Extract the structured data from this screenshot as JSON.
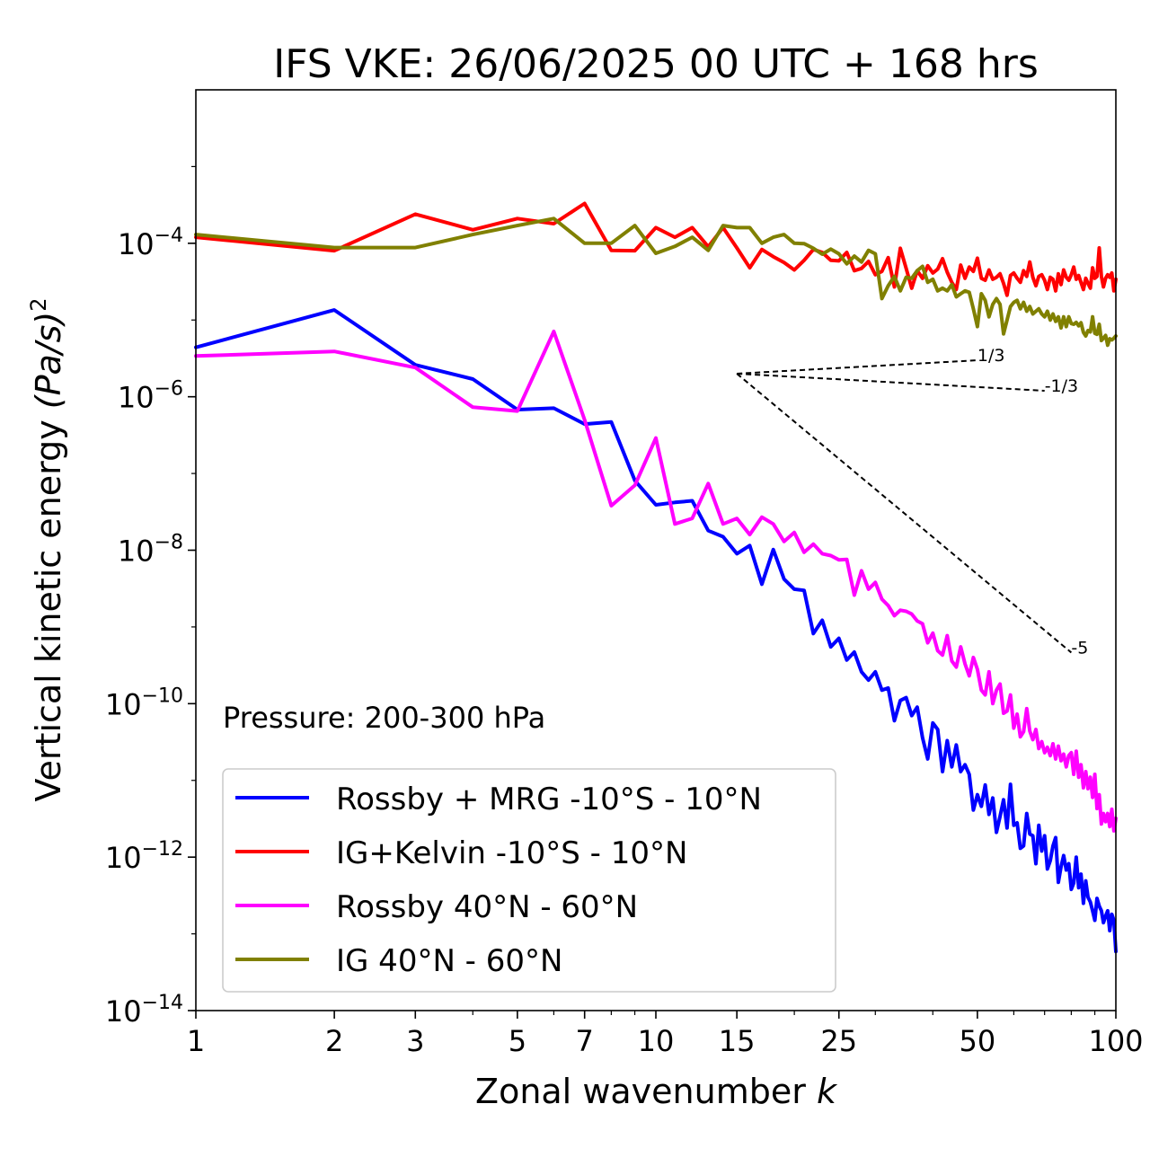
{
  "chart_data": {
    "type": "line",
    "title": "IFS VKE: 26/06/2025 00 UTC + 168 hrs",
    "xlabel": "Zonal wavenumber",
    "xlabel_var": "k",
    "ylabel": "Vertical kinetic energy",
    "ylabel_unit": "(Pa/s)",
    "ylabel_exp": "2",
    "xscale": "log",
    "yscale": "log",
    "xlim": [
      1,
      100
    ],
    "ylim": [
      1e-14,
      0.01
    ],
    "grid": false,
    "legend_position": "lower-left",
    "xticks": [
      {
        "value": 1,
        "label": "1"
      },
      {
        "value": 2,
        "label": "2"
      },
      {
        "value": 3,
        "label": "3"
      },
      {
        "value": 5,
        "label": "5"
      },
      {
        "value": 7,
        "label": "7"
      },
      {
        "value": 10,
        "label": "10"
      },
      {
        "value": 15,
        "label": "15"
      },
      {
        "value": 25,
        "label": "25"
      },
      {
        "value": 50,
        "label": "50"
      },
      {
        "value": 100,
        "label": "100"
      }
    ],
    "yticks": [
      {
        "value": 0.0001,
        "base": "10",
        "exp": "−4"
      },
      {
        "value": 1e-06,
        "base": "10",
        "exp": "−6"
      },
      {
        "value": 1e-08,
        "base": "10",
        "exp": "−8"
      },
      {
        "value": 1e-10,
        "base": "10",
        "exp": "−10"
      },
      {
        "value": 1e-12,
        "base": "10",
        "exp": "−12"
      },
      {
        "value": 1e-14,
        "base": "10",
        "exp": "−14"
      }
    ],
    "annotation": "Pressure: 200-300 hPa",
    "reference_slopes": [
      {
        "label": "1/3",
        "exponent": 0.3333,
        "origin": [
          15,
          2e-06
        ],
        "end_x": 50
      },
      {
        "label": "-1/3",
        "exponent": -0.3333,
        "origin": [
          15,
          2e-06
        ],
        "end_x": 70
      },
      {
        "label": "-5",
        "exponent": -5,
        "origin": [
          15,
          2e-06
        ],
        "end_x": 80
      }
    ],
    "series": [
      {
        "name": "Rossby + MRG -10°S - 10°N",
        "color": "#0000ff",
        "x_start": 1,
        "values": [
          4.4e-06,
          1.35e-05,
          2.6e-06,
          1.7e-06,
          6.8e-07,
          7.1e-07,
          4.4e-07,
          4.7e-07,
          8.1e-08,
          3.9e-08,
          4.2e-08,
          4.4e-08,
          1.8e-08,
          1.5e-08,
          9e-09,
          1.15e-08,
          3.6e-09,
          1.02e-08,
          4.2e-09,
          3.1e-09,
          3e-09,
          8.2e-10,
          1.22e-09,
          5.5e-10,
          7.1e-10,
          3.7e-10,
          4.7e-10,
          2.6e-10,
          2.03e-10,
          2.6e-10,
          1.5e-10,
          1.6e-10,
          6e-11,
          1.1e-10,
          1.2e-10,
          7e-11,
          9e-11,
          3.6e-11,
          1.9e-11,
          5.6e-11,
          4.6e-11,
          1.3e-11,
          3.3e-11,
          1.5e-11,
          2.9e-11,
          1.3e-11,
          1.6e-11,
          1.2e-11,
          4.1e-12,
          6.5e-12,
          4.6e-12,
          8.7e-12,
          3.6e-12,
          5.9e-12,
          2.1e-12,
          3.4e-12,
          5.6e-12,
          2.4e-12,
          8.9e-12,
          2.6e-12,
          2.8e-12,
          1.3e-12,
          1.4e-12,
          3.7e-12,
          2e-12,
          1.9e-12,
          8.2e-13,
          2.6e-12,
          1.2e-12,
          1.9e-12,
          7e-13,
          9e-13,
          1.4e-12,
          1.8e-12,
          4.7e-13,
          7.5e-13,
          1.05e-12,
          6.8e-13,
          8.2e-13,
          3.8e-13,
          4.6e-13,
          1e-12,
          4e-13,
          6e-13,
          2.5e-13,
          4.9e-13,
          3e-13,
          2.6e-13,
          2e-13,
          1.5e-13,
          2.9e-13,
          2.3e-13,
          2e-13,
          1.4e-13,
          1.7e-13,
          2e-13,
          1.1e-13,
          1.8e-13,
          1.5e-13,
          5.9e-14
        ]
      },
      {
        "name": "IG+Kelvin -10°S - 10°N",
        "color": "#ff0000",
        "x_start": 1,
        "values": [
          0.00012,
          8e-05,
          0.00024,
          0.00015,
          0.00021,
          0.00018,
          0.00033,
          8.1e-05,
          8e-05,
          0.00016,
          0.00012,
          0.00016,
          9e-05,
          0.00016,
          8.7e-05,
          4.8e-05,
          8.3e-05,
          6.7e-05,
          5.6e-05,
          4.5e-05,
          6e-05,
          8.3e-05,
          7.6e-05,
          6e-05,
          5.9e-05,
          7.6e-05,
          4.4e-05,
          4.7e-05,
          5.8e-05,
          3.9e-05,
          4.3e-05,
          6.5e-05,
          2.7e-05,
          8.6e-05,
          4.7e-05,
          2.6e-05,
          4.4e-05,
          3.5e-05,
          5.1e-05,
          4.1e-05,
          4.6e-05,
          6.3e-05,
          4.2e-05,
          3.1e-05,
          2.5e-05,
          5.2e-05,
          3.5e-05,
          4.9e-05,
          4.3e-05,
          6.4e-05,
          3.5e-05,
          3.3e-05,
          4.5e-05,
          3.4e-05,
          3.6e-05,
          4e-05,
          3e-05,
          2.1e-05,
          3.8e-05,
          4.1e-05,
          3.5e-05,
          3.1e-05,
          4.4e-05,
          3.7e-05,
          5.7e-05,
          3.6e-05,
          2.8e-05,
          3.7e-05,
          3.9e-05,
          3.3e-05,
          2.5e-05,
          3.6e-05,
          3.4e-05,
          2.4e-05,
          4e-05,
          2.9e-05,
          4.5e-05,
          3.6e-05,
          3.3e-05,
          3.9e-05,
          4.9e-05,
          3.4e-05,
          3.8e-05,
          3.1e-05,
          2.5e-05,
          3.5e-05,
          3e-05,
          2.6e-05,
          4.8e-05,
          3.5e-05,
          3.7e-05,
          8.7e-05,
          3.7e-05,
          2.7e-05,
          3.5e-05,
          3.9e-05,
          3.6e-05,
          4.1e-05,
          2.4e-05,
          3.4e-05
        ]
      },
      {
        "name": "Rossby 40°N - 60°N",
        "color": "#ff00ff",
        "x_start": 1,
        "values": [
          3.4e-06,
          3.9e-06,
          2.4e-06,
          7.3e-07,
          6.5e-07,
          7.1e-06,
          5e-07,
          3.8e-08,
          7e-08,
          2.9e-07,
          2.2e-08,
          2.6e-08,
          7.4e-08,
          2.2e-08,
          2.6e-08,
          1.6e-08,
          2.7e-08,
          2.2e-08,
          1.3e-08,
          1.7e-08,
          9.4e-09,
          1.2e-08,
          9e-09,
          8.5e-09,
          7.5e-09,
          7.6e-09,
          2.6e-09,
          5.4e-09,
          3.1e-09,
          3.8e-09,
          2.3e-09,
          1.9e-09,
          1.4e-09,
          1.65e-09,
          1.6e-09,
          1.47e-09,
          1.2e-09,
          1.1e-09,
          6.2e-10,
          8.3e-10,
          4.9e-10,
          4.3e-10,
          7.7e-10,
          3.6e-10,
          3e-10,
          5.5e-10,
          3.3e-10,
          2.3e-10,
          4e-10,
          2.8e-10,
          1.5e-10,
          1.3e-10,
          2.6e-10,
          1e-10,
          1.5e-10,
          1.8e-10,
          7.5e-11,
          8e-11,
          1.3e-10,
          4.8e-11,
          7.3e-11,
          3.7e-11,
          4.3e-11,
          8.6e-11,
          4.4e-11,
          3.4e-11,
          4.6e-11,
          2.6e-11,
          3.2e-11,
          2.3e-11,
          2.7e-11,
          2.1e-11,
          3e-11,
          1.9e-11,
          2.8e-11,
          1.8e-11,
          2.2e-11,
          1.5e-11,
          2.1e-11,
          2.3e-11,
          1.2e-11,
          2.4e-11,
          1.1e-11,
          1.6e-11,
          8e-12,
          1.3e-11,
          7.8e-12,
          1.1e-11,
          6e-12,
          1.2e-11,
          4.3e-12,
          6.5e-12,
          2.7e-12,
          3.7e-12,
          2.9e-12,
          3.7e-12,
          2.5e-12,
          4.2e-12,
          2.2e-12,
          3.2e-12
        ]
      },
      {
        "name": "IG 40°N - 60°N",
        "color": "#808000",
        "x_start": 1,
        "values": [
          0.00013,
          8.8e-05,
          8.8e-05,
          0.00013,
          0.00017,
          0.00021,
          0.0001,
          0.0001,
          0.00017,
          7.4e-05,
          9.1e-05,
          0.00012,
          8.1e-05,
          0.00017,
          0.00016,
          0.00016,
          0.0001,
          0.00012,
          0.00013,
          0.0001,
          9.9e-05,
          8.6e-05,
          7.2e-05,
          8.4e-05,
          7.3e-05,
          5.4e-05,
          6.8e-05,
          5.7e-05,
          8.1e-05,
          7.3e-05,
          1.9e-05,
          2.8e-05,
          3.7e-05,
          2.4e-05,
          3.6e-05,
          3.5e-05,
          4.4e-05,
          5e-05,
          3.1e-05,
          3.4e-05,
          2.4e-05,
          2.6e-05,
          2.4e-05,
          2.9e-05,
          2e-05,
          2.2e-05,
          2.4e-05,
          2.3e-05,
          1.4e-05,
          8.2e-06,
          2.2e-05,
          1.8e-05,
          1.1e-05,
          1.6e-05,
          1.9e-05,
          1.6e-05,
          6.6e-06,
          1e-05,
          1.5e-05,
          1.7e-05,
          1.8e-05,
          1.4e-05,
          1.7e-05,
          1.3e-05,
          1.5e-05,
          1.2e-05,
          1.3e-05,
          1.4e-05,
          1.2e-05,
          1.1e-05,
          1.3e-05,
          1e-05,
          1.2e-05,
          9.6e-06,
          1.1e-05,
          7.9e-06,
          1.1e-05,
          8.2e-06,
          1.1e-05,
          9e-06,
          8.8e-06,
          9.3e-06,
          8.4e-06,
          9.2e-06,
          6.9e-06,
          6.2e-06,
          7.3e-06,
          7e-06,
          1.1e-05,
          6.7e-06,
          6.5e-06,
          8.8e-06,
          5.4e-06,
          5.8e-06,
          6.3e-06,
          4.7e-06,
          5.7e-06,
          5.5e-06,
          5.8e-06,
          6.2e-06
        ]
      }
    ]
  }
}
